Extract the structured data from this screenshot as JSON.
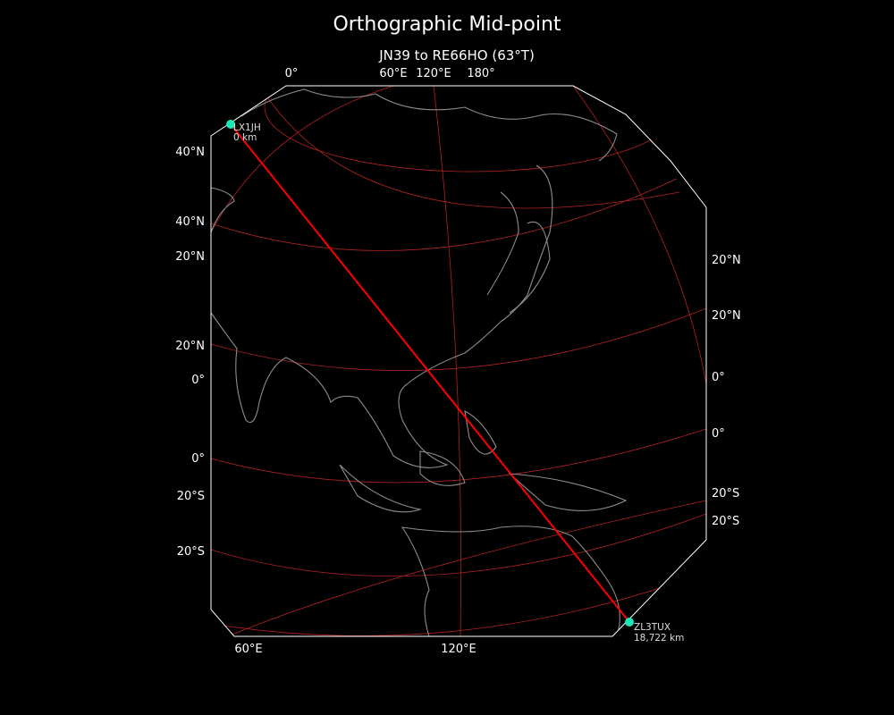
{
  "title": "Orthographic Mid-point",
  "subtitle": "JN39 to RE66HO (63°T)",
  "colors": {
    "background": "#000000",
    "path": "#ff0000",
    "graticule": "#b22222",
    "coastline": "#8c8c8c",
    "marker": "#1de9b6",
    "border": "#ffffff"
  },
  "ticks": {
    "top": [
      "0°",
      "60°E",
      "120°E",
      "180°"
    ],
    "bottom": [
      "60°E",
      "120°E"
    ],
    "left": [
      "40°N",
      "40°N",
      "20°N",
      "20°N",
      "0°",
      "0°",
      "20°S",
      "20°S"
    ],
    "right": [
      "20°N",
      "20°N",
      "0°",
      "0°",
      "20°S",
      "20°S"
    ]
  },
  "start": {
    "call": "LX1JH",
    "distance": "0 km"
  },
  "end": {
    "call": "ZL3TUX",
    "distance": "18,722 km"
  }
}
